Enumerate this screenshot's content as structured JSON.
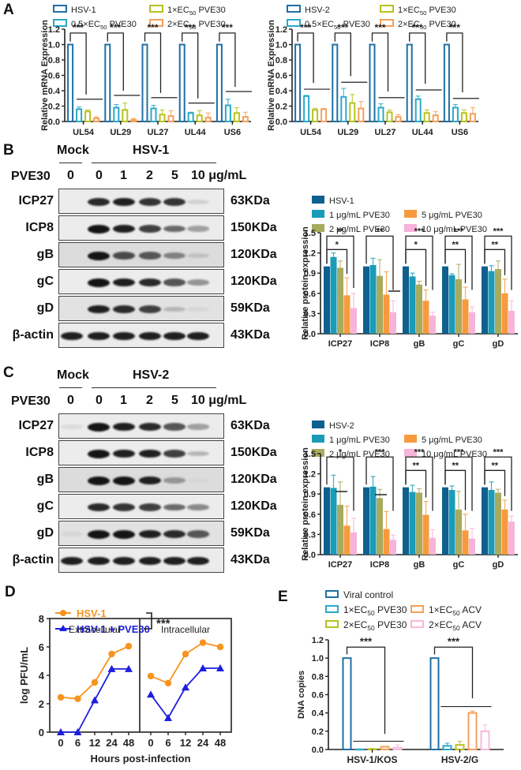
{
  "panels": {
    "A": {
      "letter": "A"
    },
    "B": {
      "letter": "B"
    },
    "C": {
      "letter": "C"
    },
    "D": {
      "letter": "D"
    },
    "E": {
      "letter": "E"
    }
  },
  "blots": {
    "B": {
      "mock_label": "Mock",
      "virus_label": "HSV-1",
      "treatment_label": "PVE30",
      "lanes": [
        "0",
        "0",
        "1",
        "2",
        "5",
        "10 μg/mL"
      ],
      "rows": [
        {
          "protein": "ICP27",
          "kda": "63KDa",
          "intensity": [
            0,
            0.9,
            0.95,
            0.85,
            0.85,
            0.12
          ]
        },
        {
          "protein": "ICP8",
          "kda": "150KDa",
          "intensity": [
            0,
            1,
            0.95,
            0.8,
            0.6,
            0.35
          ]
        },
        {
          "protein": "gB",
          "kda": "120KDa",
          "intensity": [
            0,
            1,
            0.75,
            0.7,
            0.5,
            0.2
          ]
        },
        {
          "protein": "gC",
          "kda": "120KDa",
          "intensity": [
            0,
            1,
            0.95,
            0.9,
            0.7,
            0.4
          ]
        },
        {
          "protein": "gD",
          "kda": "59KDa",
          "intensity": [
            0,
            0.95,
            0.9,
            0.8,
            0.25,
            0.1
          ]
        },
        {
          "protein": "β-actin",
          "kda": "43KDa",
          "intensity": [
            0.95,
            0.95,
            0.95,
            0.95,
            0.95,
            0.95
          ]
        }
      ]
    },
    "C": {
      "mock_label": "Mock",
      "virus_label": "HSV-2",
      "treatment_label": "PVE30",
      "lanes": [
        "0",
        "0",
        "1",
        "2",
        "5",
        "10 μg/mL"
      ],
      "rows": [
        {
          "protein": "ICP27",
          "kda": "63KDa",
          "intensity": [
            0.08,
            1,
            0.95,
            0.9,
            0.7,
            0.35
          ]
        },
        {
          "protein": "ICP8",
          "kda": "150KDa",
          "intensity": [
            0,
            1,
            0.95,
            0.95,
            0.8,
            0.25
          ]
        },
        {
          "protein": "gB",
          "kda": "120KDa",
          "intensity": [
            0,
            1,
            1,
            0.95,
            0.4,
            0.1
          ]
        },
        {
          "protein": "gC",
          "kda": "120KDa",
          "intensity": [
            0,
            0.9,
            0.85,
            0.8,
            0.6,
            0.45
          ]
        },
        {
          "protein": "gD",
          "kda": "59KDa",
          "intensity": [
            0.1,
            1,
            1,
            0.95,
            0.9,
            0.7
          ]
        },
        {
          "protein": "β-actin",
          "kda": "43KDa",
          "intensity": [
            0.95,
            0.95,
            0.95,
            0.95,
            0.95,
            0.95
          ]
        }
      ]
    }
  },
  "chart_data": [
    {
      "id": "A-left",
      "type": "bar",
      "style": "hollow",
      "ylabel": "Relative mRNA Expression",
      "xlabel": "",
      "ylim": [
        0,
        1.2
      ],
      "yticks": [
        "0.0",
        "0.2",
        "0.4",
        "0.6",
        "0.8",
        "1.0",
        "1.2"
      ],
      "categories": [
        "UL54",
        "UL29",
        "UL27",
        "UL44",
        "US6"
      ],
      "series": [
        {
          "name": "HSV-1",
          "color": "#1f6fa3",
          "values": [
            1.0,
            1.0,
            1.0,
            1.0,
            1.0
          ],
          "err": [
            0,
            0,
            0,
            0,
            0
          ]
        },
        {
          "name": "0.5×EC50 PVE30",
          "color": "#2aa9c9",
          "values": [
            0.16,
            0.18,
            0.17,
            0.11,
            0.21
          ],
          "err": [
            0.03,
            0.04,
            0.04,
            0.01,
            0.08
          ]
        },
        {
          "name": "1×EC50 PVE30",
          "color": "#b8c21c",
          "values": [
            0.13,
            0.15,
            0.09,
            0.08,
            0.11
          ],
          "err": [
            0.02,
            0.09,
            0.06,
            0.06,
            0.07
          ]
        },
        {
          "name": "2×EC50 PVE30",
          "color": "#f5a05a",
          "values": [
            0.04,
            0.02,
            0.07,
            0.05,
            0.06
          ],
          "err": [
            0.02,
            0.02,
            0.07,
            0.06,
            0.06
          ]
        }
      ],
      "legend": [
        "HSV-1",
        "1×EC50 PVE30",
        "0.5×EC50 PVE30",
        "2×EC50 PVE30"
      ],
      "annotations": [
        "***",
        "***",
        "***",
        "***",
        "***"
      ]
    },
    {
      "id": "A-right",
      "type": "bar",
      "style": "hollow",
      "ylabel": "Relative mRNA Expression",
      "xlabel": "",
      "ylim": [
        0,
        1.2
      ],
      "yticks": [
        "0.0",
        "0.2",
        "0.4",
        "0.6",
        "0.8",
        "1.0",
        "1.2"
      ],
      "categories": [
        "UL54",
        "UL29",
        "UL27",
        "UL44",
        "US6"
      ],
      "series": [
        {
          "name": "HSV-2",
          "color": "#1f6fa3",
          "values": [
            1.0,
            1.0,
            1.0,
            1.0,
            1.0
          ],
          "err": [
            0,
            0,
            0,
            0,
            0
          ]
        },
        {
          "name": "0.5×EC50 PVE30",
          "color": "#2aa9c9",
          "values": [
            0.33,
            0.32,
            0.18,
            0.29,
            0.18
          ],
          "err": [
            0.01,
            0.11,
            0.05,
            0.04,
            0.04
          ]
        },
        {
          "name": "1×EC50 PVE30",
          "color": "#b8c21c",
          "values": [
            0.15,
            0.24,
            0.12,
            0.11,
            0.11
          ],
          "err": [
            0.02,
            0.11,
            0.03,
            0.04,
            0.04
          ]
        },
        {
          "name": "2×EC50 PVE30",
          "color": "#f5a05a",
          "values": [
            0.16,
            0.17,
            0.06,
            0.08,
            0.1
          ],
          "err": [
            0.01,
            0.09,
            0.03,
            0.05,
            0.08
          ]
        }
      ],
      "legend": [
        "HSV-2",
        "1×EC50 PVE30",
        "0.5×EC50 PVE30",
        "2×EC50 PVE30"
      ],
      "annotations": [
        "***",
        "***",
        "***",
        "***",
        "***"
      ]
    },
    {
      "id": "B-chart",
      "type": "bar",
      "style": "filled",
      "ylabel": "Relative protein expression",
      "xlabel": "",
      "ylim": [
        0,
        1.5
      ],
      "yticks": [
        "0.0",
        "0.3",
        "0.6",
        "0.9",
        "1.2",
        "1.5"
      ],
      "categories": [
        "ICP27",
        "ICP8",
        "gB",
        "gC",
        "gD"
      ],
      "series": [
        {
          "name": "HSV-1",
          "color": "#0f5f8f",
          "values": [
            1.0,
            1.0,
            1.0,
            1.0,
            1.0
          ],
          "err": [
            0,
            0,
            0,
            0,
            0
          ]
        },
        {
          "name": "1 μg/mL PVE30",
          "color": "#1a9bb8",
          "values": [
            1.14,
            1.02,
            0.85,
            0.87,
            0.93
          ],
          "err": [
            0.06,
            0.1,
            0.05,
            0.02,
            0.08
          ]
        },
        {
          "name": "2 μg/mL PVE30",
          "color": "#a8ab5e",
          "values": [
            0.98,
            0.86,
            0.73,
            0.81,
            0.96
          ],
          "err": [
            0.1,
            0.24,
            0.05,
            0.22,
            0.12
          ]
        },
        {
          "name": "5 μg/mL PVE30",
          "color": "#f79a3e",
          "values": [
            0.57,
            0.58,
            0.49,
            0.51,
            0.6
          ],
          "err": [
            0.26,
            0.34,
            0.16,
            0.18,
            0.21
          ]
        },
        {
          "name": "10 μg/mL PVE30",
          "color": "#f7b3d9",
          "values": [
            0.38,
            0.32,
            0.27,
            0.32,
            0.34
          ],
          "err": [
            0.22,
            0.17,
            0.05,
            0.08,
            0.15
          ]
        }
      ],
      "legend": [
        "HSV-1",
        "1 μg/mL PVE30",
        "5 μg/mL PVE30",
        "2 μg/mL PVE30",
        "10 μg/mL PVE30"
      ],
      "annotations": {
        "upper": [
          "**",
          "**",
          "***",
          "***",
          "***"
        ],
        "lower": [
          "*",
          "",
          "*",
          "**",
          "**"
        ]
      }
    },
    {
      "id": "C-chart",
      "type": "bar",
      "style": "filled",
      "ylabel": "Relative protein expression",
      "xlabel": "",
      "ylim": [
        0,
        1.5
      ],
      "yticks": [
        "0.0",
        "0.3",
        "0.6",
        "0.9",
        "1.2",
        "1.5"
      ],
      "categories": [
        "ICP27",
        "ICP8",
        "gB",
        "gC",
        "gD"
      ],
      "series": [
        {
          "name": "HSV-2",
          "color": "#0f5f8f",
          "values": [
            1.0,
            1.0,
            1.0,
            1.0,
            1.0
          ],
          "err": [
            0,
            0,
            0,
            0,
            0
          ]
        },
        {
          "name": "1 μg/mL PVE30",
          "color": "#1a9bb8",
          "values": [
            0.99,
            1.01,
            0.93,
            0.96,
            0.96
          ],
          "err": [
            0.19,
            0.15,
            0.1,
            0.06,
            0.12
          ]
        },
        {
          "name": "2 μg/mL PVE30",
          "color": "#a8ab5e",
          "values": [
            0.74,
            0.84,
            0.92,
            0.67,
            0.92
          ],
          "err": [
            0.34,
            0.13,
            0.06,
            0.27,
            0.05
          ]
        },
        {
          "name": "5 μg/mL PVE30",
          "color": "#f79a3e",
          "values": [
            0.43,
            0.38,
            0.59,
            0.36,
            0.67
          ],
          "err": [
            0.29,
            0.26,
            0.2,
            0.24,
            0.14
          ]
        },
        {
          "name": "10 μg/mL PVE30",
          "color": "#f7b3d9",
          "values": [
            0.33,
            0.22,
            0.25,
            0.24,
            0.49
          ],
          "err": [
            0.21,
            0.07,
            0.12,
            0.15,
            0.08
          ]
        }
      ],
      "legend": [
        "HSV-2",
        "1 μg/mL PVE30",
        "5 μg/mL PVE30",
        "2 μg/mL PVE30",
        "10 μg/mL PVE30"
      ],
      "annotations": {
        "upper": [
          "*",
          "***",
          "***",
          "***",
          "***"
        ],
        "lower": [
          "",
          "",
          "**",
          "**",
          "**"
        ]
      }
    },
    {
      "id": "D",
      "type": "line",
      "ylabel": "log PFU/mL",
      "xlabel": "Hours post-infection",
      "ylim": [
        0,
        8
      ],
      "yticks": [
        "0",
        "2",
        "4",
        "6",
        "8"
      ],
      "facets": [
        "Extracellular",
        "Intracellular"
      ],
      "x": [
        "0",
        "6",
        "12",
        "24",
        "48"
      ],
      "series": [
        {
          "name": "HSV-1",
          "color": "#f7931e",
          "marker": "circle",
          "Extracellular": [
            2.45,
            2.35,
            3.5,
            5.5,
            6.05
          ],
          "Intracellular": [
            3.95,
            3.45,
            5.5,
            6.3,
            6.0
          ]
        },
        {
          "name": "HSV-1 + PVE30",
          "color": "#1d1de0",
          "marker": "triangle",
          "Extracellular": [
            0,
            0,
            2.25,
            4.45,
            4.45
          ],
          "Intracellular": [
            2.65,
            1.0,
            3.15,
            4.5,
            4.5
          ]
        }
      ],
      "legend": [
        "HSV-1",
        "HSV-1 + PVE30"
      ],
      "annotation": "***"
    },
    {
      "id": "E",
      "type": "bar",
      "style": "hollow",
      "ylabel": "DNA copies",
      "xlabel": "",
      "ylim": [
        0,
        1.2
      ],
      "yticks": [
        "0.0",
        "0.2",
        "0.4",
        "0.6",
        "0.8",
        "1.0",
        "1.2"
      ],
      "categories": [
        "HSV-1/KOS",
        "HSV-2/G"
      ],
      "series": [
        {
          "name": "Viral control",
          "color": "#1f6fa3",
          "values": [
            1.0,
            1.0
          ],
          "err": [
            0,
            0
          ]
        },
        {
          "name": "1×EC50 PVE30",
          "color": "#2aa9c9",
          "values": [
            0.002,
            0.04
          ],
          "err": [
            0.002,
            0.03
          ]
        },
        {
          "name": "2×EC50 PVE30",
          "color": "#b8c21c",
          "values": [
            0.005,
            0.05
          ],
          "err": [
            0.005,
            0.04
          ]
        },
        {
          "name": "1×EC50 ACV",
          "color": "#f5a05a",
          "values": [
            0.03,
            0.4
          ],
          "err": [
            0.005,
            0.02
          ]
        },
        {
          "name": "2×EC50 ACV",
          "color": "#f9b8dd",
          "values": [
            0.02,
            0.2
          ],
          "err": [
            0.03,
            0.07
          ]
        }
      ],
      "legend": [
        "Viral control",
        "1×EC50 PVE30",
        "1×EC50 ACV",
        "2×EC50 PVE30",
        "2×EC50 ACV"
      ],
      "annotations": [
        "***",
        "***"
      ]
    }
  ]
}
